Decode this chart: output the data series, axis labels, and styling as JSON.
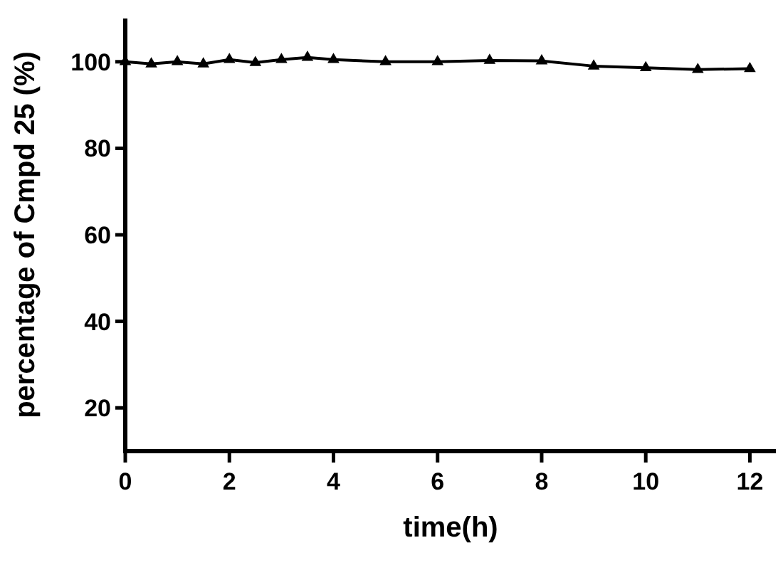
{
  "chart_data": {
    "type": "line",
    "xlabel": "time(h)",
    "ylabel": "percentage of Cmpd 25 (%)",
    "x": [
      0,
      0.5,
      1,
      1.5,
      2,
      2.5,
      3,
      3.5,
      4,
      5,
      6,
      7,
      8,
      9,
      10,
      11,
      12
    ],
    "series": [
      {
        "color": "#000000",
        "values": [
          100,
          99.5,
          100,
          99.5,
          100.5,
          99.8,
          100.5,
          101,
          100.5,
          100,
          100,
          100.3,
          100.2,
          99,
          98.6,
          98.2,
          98.4
        ]
      }
    ],
    "xlim": [
      0,
      12.5
    ],
    "xticks": [
      0,
      2,
      4,
      6,
      8,
      10,
      12
    ],
    "ylim": [
      10,
      110
    ],
    "yticks": [
      20,
      40,
      60,
      80,
      100
    ],
    "grid": false,
    "marker": "triangle",
    "line_style": "solid"
  }
}
